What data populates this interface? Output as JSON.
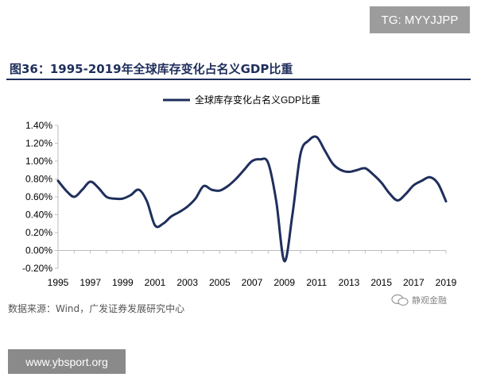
{
  "watermark_top": "TG: MYYJJPP",
  "figure_title": "图36：1995-2019年全球库存变化占名义GDP比重",
  "source_text": "数据来源：Wind，广发证券发展研究中心",
  "wechat_label": "静观金融",
  "watermark_bottom": "www.ybsport.org",
  "colors": {
    "series": "#1f2f5c",
    "title": "#1f2f5c",
    "axis": "#bfbfbf"
  },
  "chart_data": {
    "type": "line",
    "title": "",
    "xlabel": "",
    "ylabel": "",
    "x_tick_labels": [
      "1995",
      "1997",
      "1999",
      "2001",
      "2003",
      "2005",
      "2007",
      "2009",
      "2011",
      "2013",
      "2015",
      "2017",
      "2019"
    ],
    "y_tick_labels": [
      "1.40%",
      "1.20%",
      "1.00%",
      "0.80%",
      "0.60%",
      "0.40%",
      "0.20%",
      "0.00%",
      "-0.20%"
    ],
    "xlim": [
      1995,
      2019
    ],
    "ylim": [
      -0.2,
      1.4
    ],
    "legend_position": "top-center",
    "series": [
      {
        "name": "全球库存变化占名义GDP比重",
        "x": [
          1995,
          1995.5,
          1996,
          1996.5,
          1997,
          1997.5,
          1998,
          1998.5,
          1999,
          1999.5,
          2000,
          2000.5,
          2001,
          2001.5,
          2002,
          2002.5,
          2003,
          2003.5,
          2004,
          2004.5,
          2005,
          2005.5,
          2006,
          2006.5,
          2007,
          2007.5,
          2008,
          2008.5,
          2009,
          2009.5,
          2010,
          2010.5,
          2011,
          2011.5,
          2012,
          2012.5,
          2013,
          2013.5,
          2014,
          2014.5,
          2015,
          2015.5,
          2016,
          2016.5,
          2017,
          2017.5,
          2018,
          2018.5,
          2019
        ],
        "values": [
          0.78,
          0.67,
          0.6,
          0.68,
          0.77,
          0.7,
          0.6,
          0.58,
          0.58,
          0.62,
          0.68,
          0.55,
          0.28,
          0.3,
          0.38,
          0.43,
          0.49,
          0.58,
          0.72,
          0.68,
          0.67,
          0.72,
          0.8,
          0.9,
          1.0,
          1.02,
          0.98,
          0.55,
          -0.12,
          0.4,
          1.08,
          1.23,
          1.27,
          1.12,
          0.97,
          0.9,
          0.88,
          0.9,
          0.92,
          0.85,
          0.76,
          0.64,
          0.56,
          0.63,
          0.73,
          0.78,
          0.82,
          0.75,
          0.55
        ]
      }
    ]
  }
}
